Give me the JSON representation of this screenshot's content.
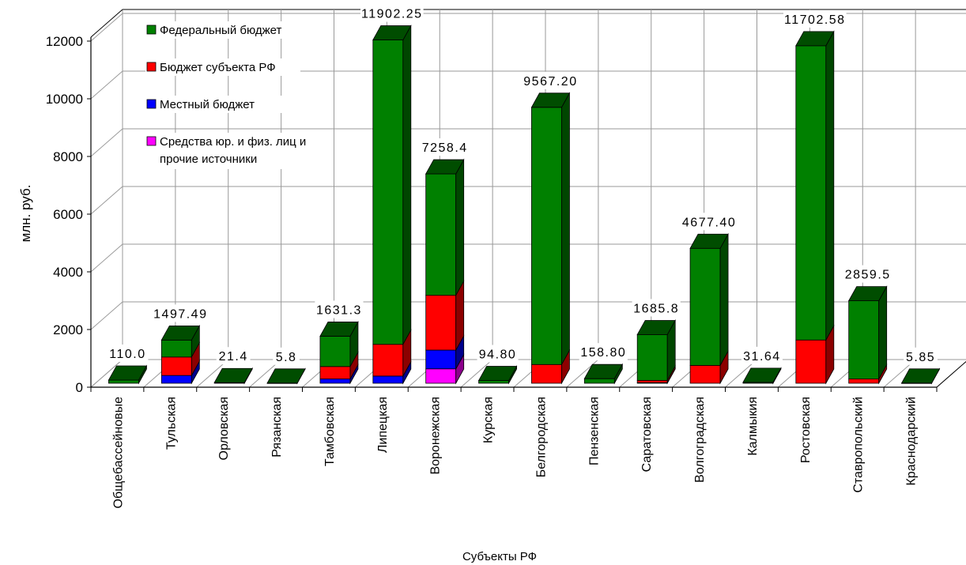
{
  "chart_data": {
    "type": "bar",
    "stacked": true,
    "three_d": true,
    "xlabel": "Субъекты РФ",
    "ylabel": "млн. руб.",
    "ylim": [
      0,
      12000
    ],
    "yticks": [
      0,
      2000,
      4000,
      6000,
      8000,
      10000,
      12000
    ],
    "grid": true,
    "legend_position": "top-left",
    "categories": [
      "Общебассейновые",
      "Тульская",
      "Орловская",
      "Рязанская",
      "Тамбовская",
      "Липецкая",
      "Воронежская",
      "Курская",
      "Белгородская",
      "Пензенская",
      "Саратовская",
      "Волгоградская",
      "Калмыкия",
      "Ростовская",
      "Ставропольский",
      "Краснодарский"
    ],
    "totals_labels": [
      "110.0",
      "1497.49",
      "21.4",
      "5.8",
      "1631.3",
      "11902.25",
      "7258.4",
      "94.80",
      "9567.20",
      "158.80",
      "1685.8",
      "4677.40",
      "31.64",
      "11702.58",
      "2859.5",
      "5.85"
    ],
    "series": [
      {
        "name": "Средства юр. и физ. лиц и прочие источники",
        "color": "#ff00ff",
        "values": [
          0,
          0,
          0,
          0,
          0,
          0,
          500,
          0,
          0,
          0,
          0,
          0,
          0,
          0,
          0,
          0
        ]
      },
      {
        "name": "Местный бюджет",
        "color": "#0000ff",
        "values": [
          0,
          270,
          0,
          0,
          150,
          250,
          650,
          0,
          0,
          0,
          20,
          0,
          0,
          0,
          0,
          0
        ]
      },
      {
        "name": "Бюджет субъекта РФ",
        "color": "#ff0000",
        "values": [
          0,
          640,
          0,
          0,
          430,
          1100,
          1900,
          0,
          650,
          0,
          80,
          620,
          0,
          1500,
          150,
          0
        ]
      },
      {
        "name": "Федеральный бюджет",
        "color": "#008000",
        "values": [
          110,
          587.49,
          21.4,
          5.8,
          1051.3,
          10552.25,
          4208.4,
          94.8,
          8917.2,
          158.8,
          1585.8,
          4057.4,
          31.64,
          10202.58,
          2709.5,
          5.85
        ]
      }
    ],
    "legend_order": [
      "Федеральный бюджет",
      "Бюджет субъекта РФ",
      "Местный бюджет",
      "Средства юр. и физ. лиц и прочие источники"
    ]
  }
}
